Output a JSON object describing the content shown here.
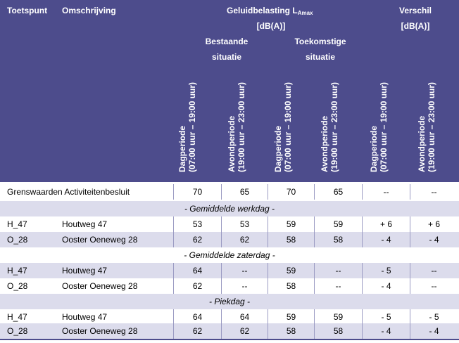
{
  "header": {
    "col_toetspunt": "Toetspunt",
    "col_omschrijving": "Omschrijving",
    "geluid_title": "Geluidbelasting L",
    "geluid_sub": "Amax",
    "geluid_unit": "[dB(A)]",
    "verschil_title": "Verschil",
    "verschil_unit": "[dB(A)]",
    "bestaande_line1": "Bestaande",
    "bestaande_line2": "situatie",
    "toekomstige_line1": "Toekomstige",
    "toekomstige_line2": "situatie",
    "period_dag_1": "Dagperiode",
    "period_dag_2": "(07:00 uur – 19:00 uur)",
    "period_avond_1": "Avondperiode",
    "period_avond_2": "(19:00 uur – 23:00 uur)"
  },
  "grenswaarden": {
    "label": "Grenswaarden Activiteitenbesluit",
    "values": [
      "70",
      "65",
      "70",
      "65",
      "--",
      "--"
    ]
  },
  "sections": [
    {
      "title": "- Gemiddelde werkdag -",
      "rows": [
        {
          "punt": "H_47",
          "omschrijving": "Houtweg 47",
          "values": [
            "53",
            "53",
            "59",
            "59",
            "+ 6",
            "+ 6"
          ]
        },
        {
          "punt": "O_28",
          "omschrijving": "Ooster Oeneweg 28",
          "values": [
            "62",
            "62",
            "58",
            "58",
            "- 4",
            "- 4"
          ]
        }
      ]
    },
    {
      "title": "- Gemiddelde zaterdag -",
      "rows": [
        {
          "punt": "H_47",
          "omschrijving": "Houtweg 47",
          "values": [
            "64",
            "--",
            "59",
            "--",
            "- 5",
            "--"
          ]
        },
        {
          "punt": "O_28",
          "omschrijving": "Ooster Oeneweg 28",
          "values": [
            "62",
            "--",
            "58",
            "--",
            "- 4",
            "--"
          ]
        }
      ]
    },
    {
      "title": "- Piekdag -",
      "rows": [
        {
          "punt": "H_47",
          "omschrijving": "Houtweg 47",
          "values": [
            "64",
            "64",
            "59",
            "59",
            "- 5",
            "- 5"
          ]
        },
        {
          "punt": "O_28",
          "omschrijving": "Ooster Oeneweg 28",
          "values": [
            "62",
            "62",
            "58",
            "58",
            "- 4",
            "- 4"
          ]
        }
      ]
    }
  ]
}
